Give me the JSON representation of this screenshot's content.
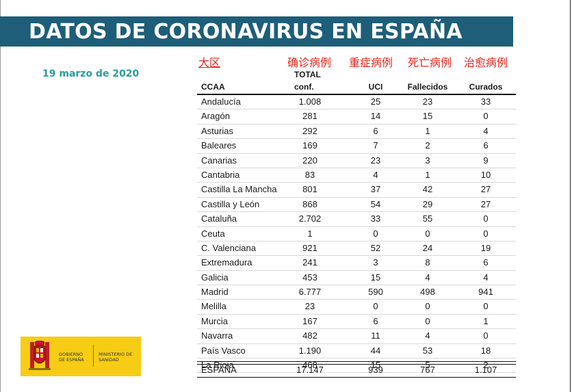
{
  "banner": {
    "title": "DATOS DE CORONAVIRUS EN ESPAÑA"
  },
  "date": "19 marzo de 2020",
  "cn_labels": {
    "region": "大区",
    "confirmed": "确诊病例",
    "icu": "重症病例",
    "deaths": "死亡病例",
    "recovered": "治愈病例"
  },
  "table": {
    "headers": {
      "ccaa": "CCAA",
      "total_line1": "TOTAL",
      "total_line2": "conf.",
      "uci": "UCI",
      "fallecidos": "Fallecidos",
      "curados": "Curados"
    },
    "rows": [
      {
        "ccaa": "Andalucía",
        "total": "1.008",
        "uci": "25",
        "fallecidos": "23",
        "curados": "33"
      },
      {
        "ccaa": "Aragón",
        "total": "281",
        "uci": "14",
        "fallecidos": "15",
        "curados": "0"
      },
      {
        "ccaa": "Asturias",
        "total": "292",
        "uci": "6",
        "fallecidos": "1",
        "curados": "4"
      },
      {
        "ccaa": "Baleares",
        "total": "169",
        "uci": "7",
        "fallecidos": "2",
        "curados": "6"
      },
      {
        "ccaa": "Canarias",
        "total": "220",
        "uci": "23",
        "fallecidos": "3",
        "curados": "9"
      },
      {
        "ccaa": "Cantabria",
        "total": "83",
        "uci": "4",
        "fallecidos": "1",
        "curados": "10"
      },
      {
        "ccaa": "Castilla La Mancha",
        "total": "801",
        "uci": "37",
        "fallecidos": "42",
        "curados": "27"
      },
      {
        "ccaa": "Castilla y León",
        "total": "868",
        "uci": "54",
        "fallecidos": "29",
        "curados": "27"
      },
      {
        "ccaa": "Cataluña",
        "total": "2.702",
        "uci": "33",
        "fallecidos": "55",
        "curados": "0"
      },
      {
        "ccaa": "Ceuta",
        "total": "1",
        "uci": "0",
        "fallecidos": "0",
        "curados": "0"
      },
      {
        "ccaa": "C. Valenciana",
        "total": "921",
        "uci": "52",
        "fallecidos": "24",
        "curados": "19"
      },
      {
        "ccaa": "Extremadura",
        "total": "241",
        "uci": "3",
        "fallecidos": "8",
        "curados": "6"
      },
      {
        "ccaa": "Galicia",
        "total": "453",
        "uci": "15",
        "fallecidos": "4",
        "curados": "4"
      },
      {
        "ccaa": "Madrid",
        "total": "6.777",
        "uci": "590",
        "fallecidos": "498",
        "curados": "941"
      },
      {
        "ccaa": "Melilla",
        "total": "23",
        "uci": "0",
        "fallecidos": "0",
        "curados": "0"
      },
      {
        "ccaa": "Murcia",
        "total": "167",
        "uci": "6",
        "fallecidos": "0",
        "curados": "1"
      },
      {
        "ccaa": "Navarra",
        "total": "482",
        "uci": "11",
        "fallecidos": "4",
        "curados": "0"
      },
      {
        "ccaa": "País Vasco",
        "total": "1.190",
        "uci": "44",
        "fallecidos": "53",
        "curados": "18"
      },
      {
        "ccaa": "La Rioja",
        "total": "468",
        "uci": "15",
        "fallecidos": "5",
        "curados": "2"
      }
    ],
    "total": {
      "ccaa": "ESPAÑA",
      "total": "17.147",
      "uci": "939",
      "fallecidos": "767",
      "curados": "1.107"
    }
  },
  "logo": {
    "left_text": "GOBIERNO DE ESPAÑA",
    "right_text": "MINISTERIO DE SANIDAD"
  },
  "colors": {
    "banner": "#1e5e78",
    "date": "#2a9d9a",
    "annotation": "#e8261c",
    "logo_bg": "#f6cc14"
  }
}
